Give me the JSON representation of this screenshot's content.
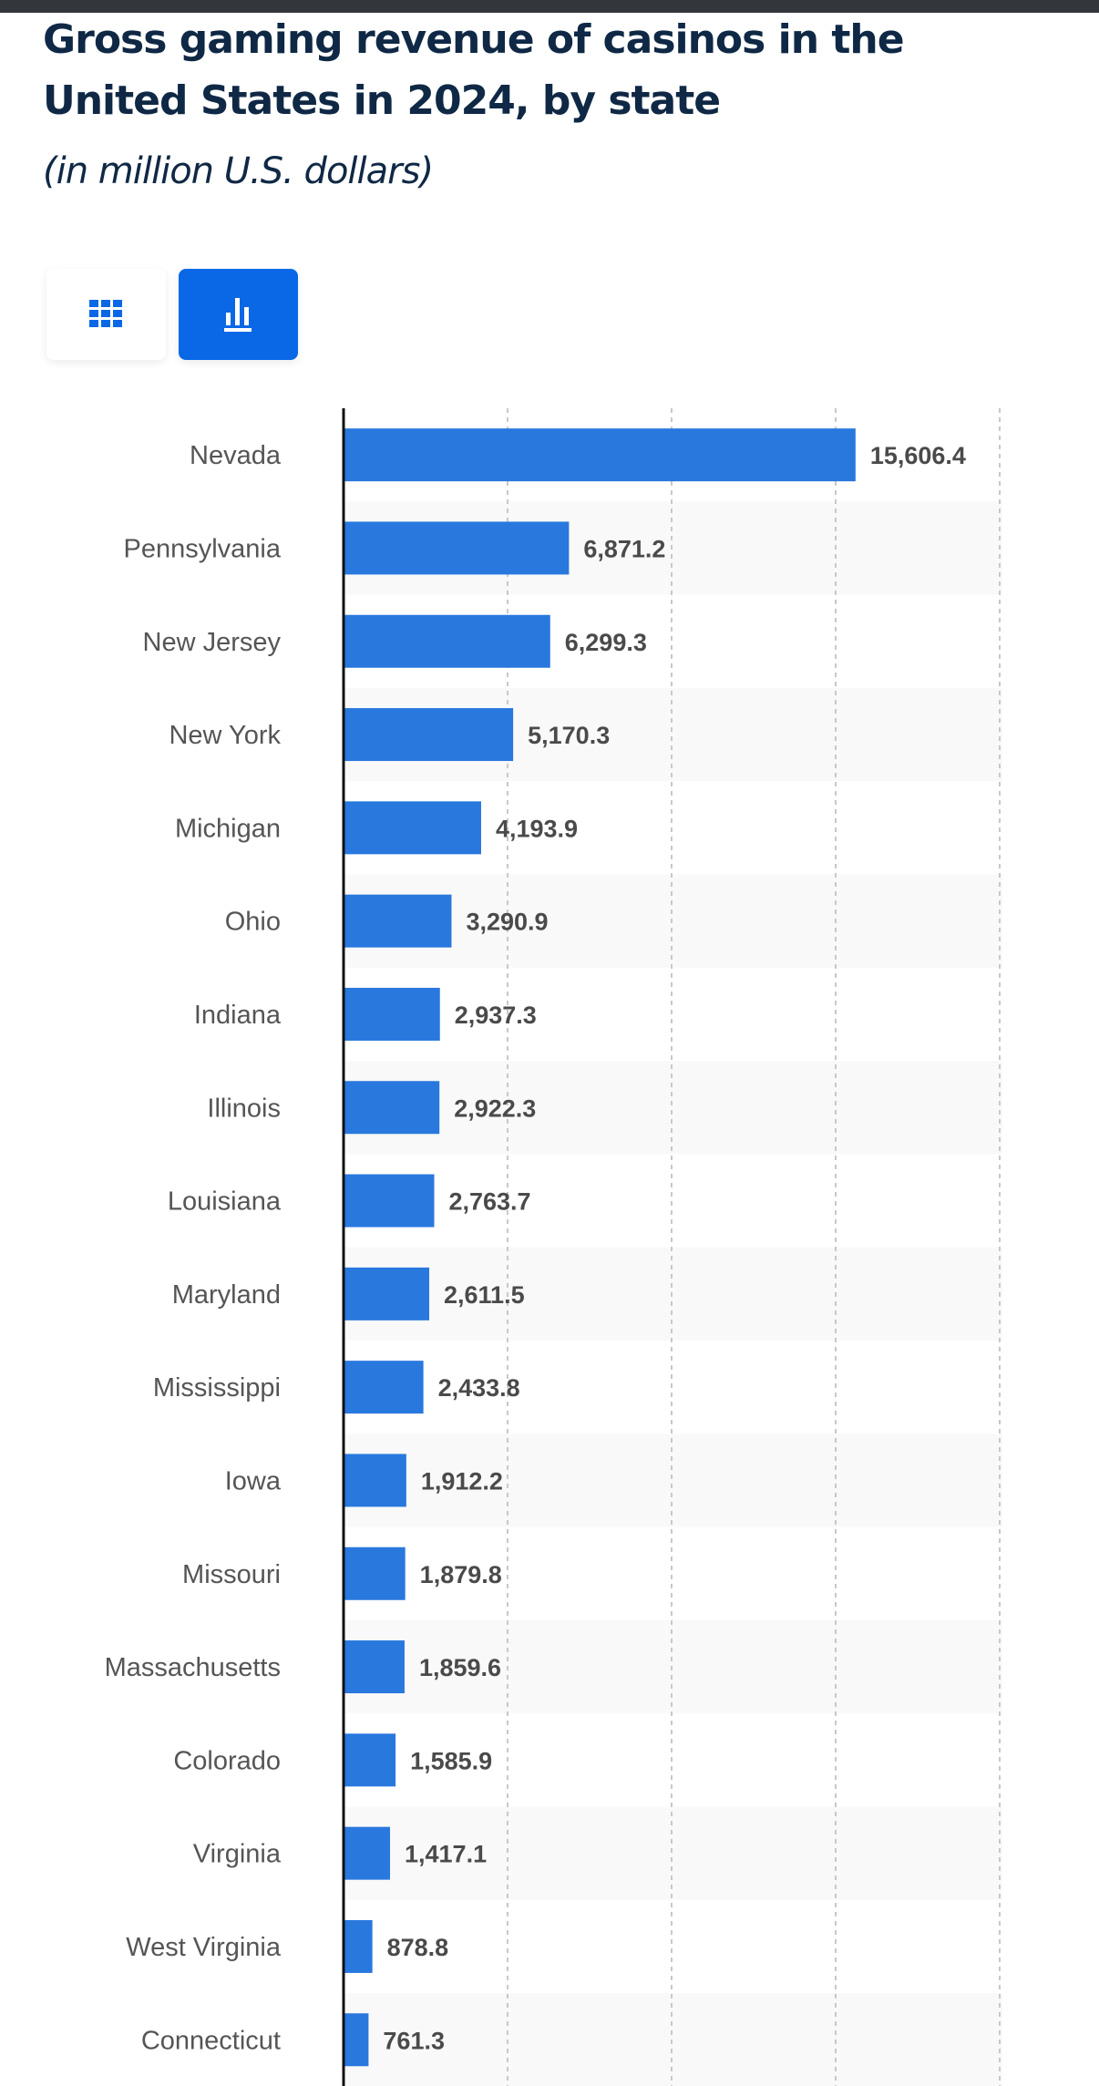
{
  "header": {
    "title": "Gross gaming revenue of casinos in the United States in 2024, by state",
    "subtitle": "(in million U.S. dollars)"
  },
  "view_toggle": {
    "table_icon": "grid-icon",
    "chart_icon": "bar-chart-icon",
    "active": "chart"
  },
  "colors": {
    "bar": "#2878de",
    "active_button": "#0a68e6",
    "title": "#0f2845",
    "value_label": "#4a4a4a",
    "category_label": "#555555"
  },
  "chart_data": {
    "type": "bar",
    "orientation": "horizontal",
    "title": "Gross gaming revenue of casinos in the United States in 2024, by state",
    "subtitle": "(in million U.S. dollars)",
    "xlabel": "",
    "ylabel": "",
    "xlim": [
      0,
      20000
    ],
    "grid": true,
    "gridlines": [
      5000,
      10000,
      15000,
      20000
    ],
    "categories": [
      "Nevada",
      "Pennsylvania",
      "New Jersey",
      "New York",
      "Michigan",
      "Ohio",
      "Indiana",
      "Illinois",
      "Louisiana",
      "Maryland",
      "Mississippi",
      "Iowa",
      "Missouri",
      "Massachusetts",
      "Colorado",
      "Virginia",
      "West Virginia",
      "Connecticut"
    ],
    "values": [
      15606.4,
      6871.2,
      6299.3,
      5170.3,
      4193.9,
      3290.9,
      2937.3,
      2922.3,
      2763.7,
      2611.5,
      2433.8,
      1912.2,
      1879.8,
      1859.6,
      1585.9,
      1417.1,
      878.8,
      761.3
    ],
    "value_labels": [
      "15,606.4",
      "6,871.2",
      "6,299.3",
      "5,170.3",
      "4,193.9",
      "3,290.9",
      "2,937.3",
      "2,922.3",
      "2,763.7",
      "2,611.5",
      "2,433.8",
      "1,912.2",
      "1,879.8",
      "1,859.6",
      "1,585.9",
      "1,417.1",
      "878.8",
      "761.3"
    ]
  }
}
